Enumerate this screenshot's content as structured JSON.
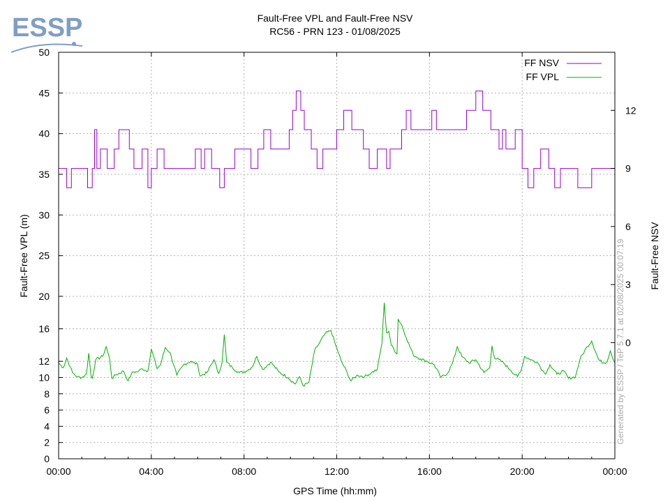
{
  "logo": {
    "text": "ESSP",
    "color": "#7f9ec4"
  },
  "watermark": "Generated by ESSP / TeP 5.7.1 at 02/08/2025 00:07:19",
  "chart_data": {
    "type": "line",
    "title": "Fault-Free VPL and Fault-Free NSV",
    "subtitle": "RC56 - PRN 123 - 01/08/2025",
    "xlabel": "GPS Time (hh:mm)",
    "ylabel_left": "Fault-Free VPL (m)",
    "ylabel_right": "Fault-Free NSV",
    "x_range_hours": [
      0,
      24
    ],
    "x_ticks": [
      "00:00",
      "04:00",
      "08:00",
      "12:00",
      "16:00",
      "20:00",
      "00:00"
    ],
    "left_axis": {
      "scale": "piecewise-linear",
      "segments": [
        [
          0,
          20,
          "lower"
        ],
        [
          20,
          50,
          "upper"
        ]
      ],
      "ticks": [
        0,
        2,
        4,
        6,
        8,
        10,
        12,
        16,
        20,
        25,
        30,
        35,
        40,
        45,
        50
      ]
    },
    "right_axis": {
      "range": [
        -6,
        15
      ],
      "ticks": [
        0,
        3,
        6,
        9,
        12
      ]
    },
    "grid": true,
    "legend_position": "top-right",
    "series": [
      {
        "name": "FF NSV",
        "axis": "right",
        "color": "#9400d3",
        "x": [
          0.0,
          0.35,
          0.55,
          1.25,
          1.45,
          1.55,
          1.65,
          1.8,
          2.1,
          2.4,
          2.6,
          3.05,
          3.25,
          3.6,
          3.85,
          4.0,
          4.25,
          4.55,
          5.0,
          5.5,
          5.9,
          6.15,
          6.3,
          6.6,
          6.95,
          7.15,
          7.3,
          7.6,
          8.0,
          8.3,
          8.6,
          8.85,
          9.15,
          9.5,
          9.95,
          10.1,
          10.25,
          10.45,
          10.6,
          10.9,
          11.15,
          11.4,
          11.7,
          12.0,
          12.3,
          12.65,
          12.9,
          13.15,
          13.4,
          13.75,
          14.15,
          14.3,
          14.5,
          14.8,
          15.0,
          15.2,
          15.5,
          15.8,
          16.1,
          16.3,
          16.7,
          17.0,
          17.3,
          17.6,
          18.0,
          18.3,
          18.65,
          18.85,
          19.0,
          19.15,
          19.3,
          19.7,
          20.0,
          20.25,
          20.5,
          20.8,
          21.15,
          21.4,
          21.65,
          21.85,
          22.1,
          22.4,
          22.7,
          23.0,
          23.3,
          23.65,
          23.85,
          24.0
        ],
        "values": [
          9,
          8,
          9,
          8,
          9,
          11,
          9,
          10,
          9,
          10,
          11,
          10,
          9,
          10,
          8,
          9,
          10,
          9,
          9,
          9,
          10,
          9,
          10,
          9,
          8,
          9,
          9,
          10,
          10,
          9,
          10,
          11,
          10,
          10,
          11,
          12,
          13,
          12,
          11,
          10,
          9,
          10,
          10,
          11,
          12,
          11,
          11,
          10,
          9,
          10,
          9,
          10,
          10,
          11,
          12,
          11,
          11,
          11,
          12,
          11,
          11,
          11,
          11,
          12,
          13,
          12,
          11,
          11,
          10,
          11,
          10,
          11,
          9,
          8,
          9,
          10,
          9,
          8,
          9,
          9,
          9,
          8,
          8,
          9,
          9,
          9,
          9,
          9
        ]
      },
      {
        "name": "FF VPL",
        "axis": "left",
        "color": "#00b000",
        "x": [
          0.0,
          0.2,
          0.35,
          0.5,
          0.6,
          0.8,
          1.0,
          1.2,
          1.3,
          1.4,
          1.45,
          1.6,
          1.9,
          2.05,
          2.2,
          2.3,
          2.45,
          2.8,
          3.0,
          3.2,
          3.4,
          3.6,
          3.85,
          4.0,
          4.25,
          4.4,
          4.6,
          4.8,
          5.1,
          5.4,
          5.7,
          6.0,
          6.1,
          6.4,
          6.7,
          6.9,
          7.05,
          7.15,
          7.25,
          7.5,
          7.8,
          8.1,
          8.35,
          8.55,
          8.8,
          9.15,
          9.5,
          9.9,
          10.2,
          10.4,
          10.55,
          10.8,
          11.05,
          11.2,
          11.5,
          11.75,
          11.95,
          12.2,
          12.45,
          12.6,
          12.9,
          13.2,
          13.5,
          13.75,
          13.95,
          14.05,
          14.15,
          14.25,
          14.35,
          14.6,
          14.65,
          14.8,
          15.0,
          15.3,
          15.6,
          15.9,
          16.2,
          16.5,
          16.8,
          17.0,
          17.2,
          17.4,
          17.7,
          18.0,
          18.35,
          18.6,
          18.7,
          18.8,
          19.2,
          19.5,
          19.8,
          19.95,
          20.1,
          20.4,
          20.7,
          21.0,
          21.2,
          21.5,
          21.8,
          22.0,
          22.3,
          22.5,
          22.8,
          23.0,
          23.3,
          23.5,
          23.65,
          23.8,
          24.0
        ],
        "values": [
          11.8,
          11.2,
          12.4,
          11.3,
          10.6,
          10.1,
          10.0,
          10.4,
          13.0,
          10.2,
          9.9,
          12.2,
          12.6,
          13.8,
          12.3,
          9.9,
          10.3,
          10.8,
          9.6,
          10.7,
          10.7,
          11.1,
          10.8,
          13.5,
          11.1,
          11.6,
          13.7,
          13.1,
          10.3,
          11.6,
          12.0,
          11.6,
          10.2,
          10.6,
          12.2,
          10.5,
          11.8,
          15.3,
          11.9,
          11.2,
          10.6,
          10.8,
          11.3,
          12.6,
          11.0,
          11.9,
          10.7,
          10.0,
          9.2,
          10.1,
          9.0,
          9.4,
          13.4,
          14.0,
          15.4,
          15.8,
          14.0,
          12.0,
          10.6,
          9.6,
          10.3,
          10.1,
          10.6,
          11.0,
          14.3,
          19.2,
          15.5,
          15.7,
          14.0,
          12.9,
          17.2,
          16.5,
          14.9,
          12.8,
          12.3,
          12.0,
          11.6,
          10.0,
          10.6,
          11.8,
          13.8,
          12.6,
          11.8,
          12.2,
          10.6,
          11.2,
          13.9,
          12.5,
          11.8,
          10.9,
          10.1,
          10.8,
          12.6,
          12.2,
          11.7,
          10.4,
          11.6,
          10.4,
          10.8,
          9.9,
          10.1,
          12.3,
          13.8,
          14.5,
          12.2,
          11.8,
          11.9,
          13.3,
          11.8
        ]
      }
    ]
  }
}
